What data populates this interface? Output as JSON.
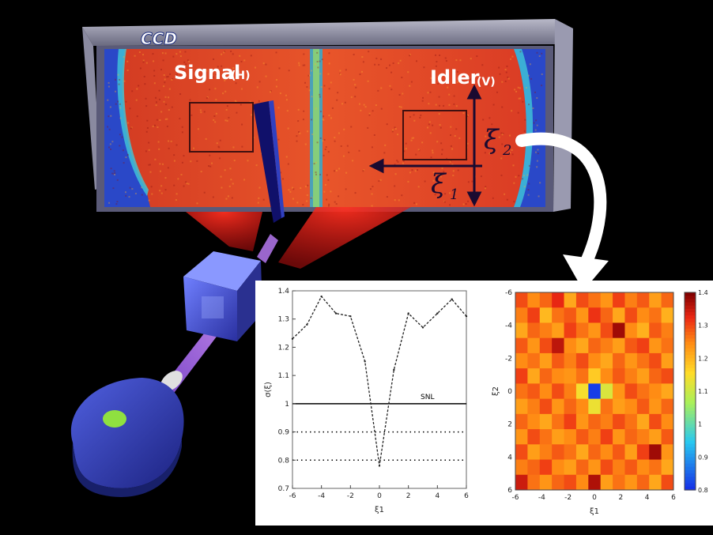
{
  "scene": {
    "ccd_label": "CCD",
    "signal_label": "Signal",
    "signal_pol": "(H)",
    "idler_label": "Idler",
    "idler_pol": "(V)",
    "xi1_label": "ξ",
    "xi1_sub": "1",
    "xi2_label": "ξ",
    "xi2_sub": "2"
  },
  "colors": {
    "ccd_background": "#e0452a",
    "beam": "#ff2a1a",
    "cube": "#4a5ae6",
    "laser": "#3848c8",
    "laser_spot": "#8fe040",
    "pump_beam": "#b070ff",
    "arrow": "#ffffff"
  },
  "chart_data": [
    {
      "type": "line",
      "xlabel": "ξ1",
      "ylabel": "σ(ξ)",
      "xticks": [
        "-6",
        "-4",
        "-2",
        "0",
        "2",
        "4",
        "6"
      ],
      "yticks": [
        "0.7",
        "0.8",
        "0.9",
        "1",
        "1.1",
        "1.2",
        "1.3",
        "1.4"
      ],
      "xlim": [
        -6,
        6
      ],
      "ylim": [
        0.7,
        1.4
      ],
      "reference_lines": [
        {
          "label": "SNL",
          "value": 1.0,
          "style": "solid"
        },
        {
          "label": "",
          "value": 0.9,
          "style": "dotted"
        },
        {
          "label": "",
          "value": 0.8,
          "style": "dotted"
        }
      ],
      "series": [
        {
          "x": [
            -6,
            -5,
            -4,
            -3,
            -2,
            -1,
            0,
            1,
            2,
            3,
            4,
            5,
            6
          ],
          "y": [
            1.23,
            1.28,
            1.38,
            1.32,
            1.31,
            1.15,
            0.78,
            1.12,
            1.32,
            1.27,
            1.32,
            1.37,
            1.31
          ]
        }
      ]
    },
    {
      "type": "heatmap",
      "xlabel": "ξ1",
      "ylabel": "ξ2",
      "xticks": [
        "-6",
        "-4",
        "-2",
        "0",
        "2",
        "4",
        "6"
      ],
      "yticks": [
        "-6",
        "-4",
        "-2",
        "0",
        "2",
        "4",
        "6"
      ],
      "colorbar_ticks": [
        "0.8",
        "0.9",
        "1",
        "1.1",
        "1.2",
        "1.3",
        "1.4"
      ],
      "clim": [
        0.8,
        1.4
      ],
      "values": [
        [
          1.3,
          1.25,
          1.28,
          1.33,
          1.22,
          1.3,
          1.27,
          1.24,
          1.31,
          1.26,
          1.29,
          1.23,
          1.28
        ],
        [
          1.26,
          1.31,
          1.2,
          1.27,
          1.29,
          1.24,
          1.32,
          1.28,
          1.22,
          1.3,
          1.25,
          1.27,
          1.21
        ],
        [
          1.22,
          1.28,
          1.26,
          1.23,
          1.31,
          1.27,
          1.24,
          1.3,
          1.38,
          1.25,
          1.21,
          1.29,
          1.26
        ],
        [
          1.29,
          1.24,
          1.3,
          1.36,
          1.25,
          1.22,
          1.28,
          1.26,
          1.23,
          1.29,
          1.31,
          1.24,
          1.27
        ],
        [
          1.25,
          1.27,
          1.23,
          1.29,
          1.26,
          1.3,
          1.25,
          1.22,
          1.28,
          1.24,
          1.27,
          1.3,
          1.23
        ],
        [
          1.31,
          1.22,
          1.28,
          1.25,
          1.24,
          1.27,
          1.18,
          1.25,
          1.29,
          1.26,
          1.23,
          1.28,
          1.3
        ],
        [
          1.27,
          1.29,
          1.25,
          1.3,
          1.26,
          1.15,
          0.82,
          1.12,
          1.24,
          1.3,
          1.27,
          1.25,
          1.22
        ],
        [
          1.23,
          1.26,
          1.3,
          1.24,
          1.28,
          1.25,
          1.14,
          1.27,
          1.23,
          1.25,
          1.29,
          1.24,
          1.28
        ],
        [
          1.28,
          1.25,
          1.22,
          1.27,
          1.31,
          1.24,
          1.28,
          1.26,
          1.3,
          1.27,
          1.22,
          1.3,
          1.25
        ],
        [
          1.24,
          1.3,
          1.27,
          1.23,
          1.25,
          1.29,
          1.26,
          1.31,
          1.24,
          1.28,
          1.26,
          1.23,
          1.29
        ],
        [
          1.3,
          1.23,
          1.26,
          1.29,
          1.27,
          1.22,
          1.28,
          1.25,
          1.29,
          1.23,
          1.31,
          1.38,
          1.24
        ],
        [
          1.26,
          1.28,
          1.31,
          1.25,
          1.23,
          1.28,
          1.24,
          1.3,
          1.26,
          1.29,
          1.25,
          1.27,
          1.22
        ],
        [
          1.35,
          1.27,
          1.24,
          1.28,
          1.3,
          1.25,
          1.37,
          1.23,
          1.27,
          1.24,
          1.28,
          1.22,
          1.3
        ]
      ]
    }
  ]
}
